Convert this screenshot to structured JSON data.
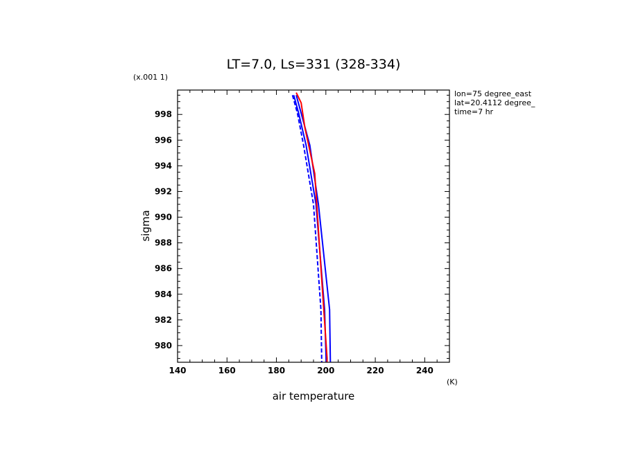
{
  "chart_data": {
    "type": "line",
    "title": "LT=7.0, Ls=331 (328-334)",
    "xlabel": "air temperature",
    "xunit": "(K)",
    "ylabel": "sigma",
    "yunit": "(x.001 1)",
    "xlim": [
      140,
      250
    ],
    "ylim": [
      999.9,
      978.7
    ],
    "x_ticks": [
      "140",
      "160",
      "180",
      "200",
      "220",
      "240"
    ],
    "y_ticks": [
      "980",
      "982",
      "984",
      "986",
      "988",
      "990",
      "992",
      "994",
      "996",
      "998"
    ],
    "annotations": [
      "lon=75 degree_east",
      "lat=20.4112 degree_",
      "time=7 hr"
    ],
    "grid": false,
    "series": [
      {
        "color": "#0000ff",
        "style": "solid",
        "marker": "large-dot",
        "points": [
          [
            187.0,
            999.5
          ],
          [
            189.0,
            998.1
          ],
          [
            192.0,
            995.6
          ],
          [
            196.0,
            991.0
          ],
          [
            199.5,
            982.8
          ],
          [
            201.5,
            970
          ]
        ]
      },
      {
        "color": "#0000ff",
        "style": "solid",
        "marker": "none",
        "points": [
          [
            188.0,
            999.5
          ],
          [
            190.0,
            998.1
          ],
          [
            193.5,
            995.6
          ],
          [
            197.0,
            991.0
          ],
          [
            201.5,
            982.8
          ],
          [
            202.5,
            970
          ]
        ]
      },
      {
        "color": "#0000ff",
        "style": "dashed",
        "marker": "none",
        "points": [
          [
            186.5,
            999.5
          ],
          [
            188.5,
            998.1
          ],
          [
            191.0,
            995.6
          ],
          [
            195.0,
            991.0
          ],
          [
            198.0,
            982.8
          ],
          [
            199.0,
            970
          ]
        ]
      },
      {
        "color": "#ff0000",
        "style": "solid",
        "marker": "small-dot",
        "points": [
          [
            188.0,
            999.7
          ],
          [
            190.0,
            998.9
          ],
          [
            191.5,
            997.0
          ],
          [
            195.5,
            993.4
          ],
          [
            197.5,
            987.5
          ],
          [
            200.5,
            979.0
          ],
          [
            199.5,
            970
          ]
        ]
      }
    ]
  }
}
